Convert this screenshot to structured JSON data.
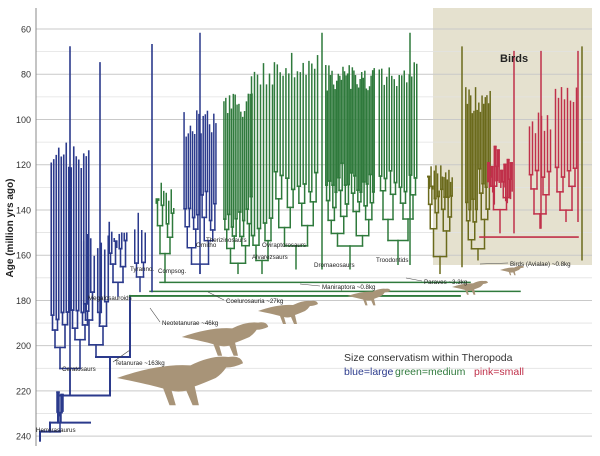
{
  "axis": {
    "label": "Age (million yrs ago)",
    "ticks": [
      "60",
      "80",
      "100",
      "120",
      "140",
      "160",
      "180",
      "200",
      "220",
      "240"
    ],
    "range": [
      56,
      245
    ]
  },
  "birds_box": {
    "label": "Birds"
  },
  "legend": {
    "title": "Size conservatism within Theropoda",
    "items": [
      {
        "text": "blue=large",
        "color": "#2b3a8c"
      },
      {
        "text": "green=medium",
        "color": "#2f7a3c"
      },
      {
        "text": "pink=small",
        "color": "#c0304a"
      }
    ]
  },
  "colors": {
    "large": "#2b3a8c",
    "medium": "#2f7a3c",
    "small": "#c0304a",
    "olive": "#6b6a1c",
    "silhouette": "#a89478",
    "box_fill": "#e5e1cf",
    "gridline": "#c9c9c9"
  },
  "clade_labels": [
    {
      "text": "Herrerasaurus"
    },
    {
      "text": "Ceratosaurs"
    },
    {
      "text": "Megalosauroids"
    },
    {
      "text": "Tyranno."
    },
    {
      "text": "Compsog."
    },
    {
      "text": "Ornitho"
    },
    {
      "text": "Therizinosaurs"
    },
    {
      "text": "Alvarezsaurs"
    },
    {
      "text": "Oviraptorosaurs"
    },
    {
      "text": "Dromaeosaurs"
    },
    {
      "text": "Troodontids"
    }
  ],
  "callouts": [
    {
      "text": "Tetanurae ~163kg"
    },
    {
      "text": "Neotetanurae ~46kg"
    },
    {
      "text": "Coelurosauria ~27kg"
    },
    {
      "text": "Maniraptora ~0.8kg"
    },
    {
      "text": "Paraves ~3.3kg"
    },
    {
      "text": "Birds (Avialae) ~0.8kg"
    }
  ]
}
